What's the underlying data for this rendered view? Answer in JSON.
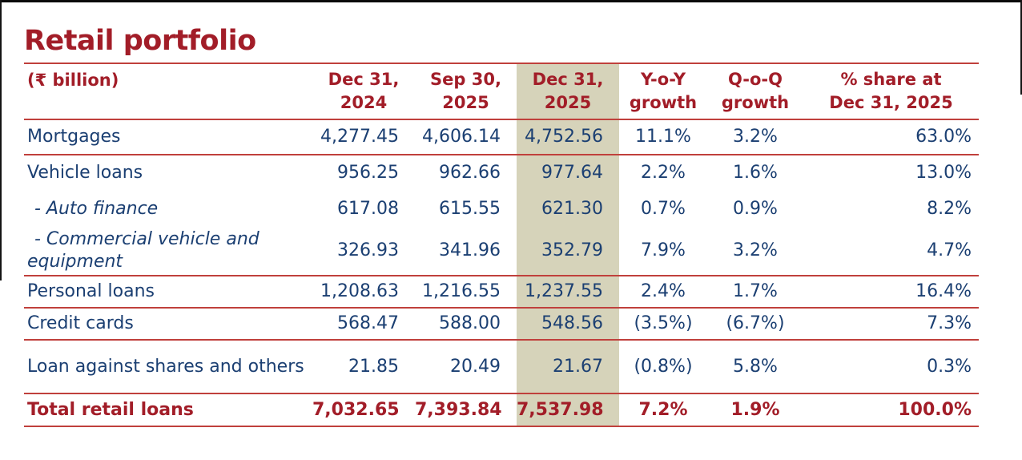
{
  "page": {
    "title": "Retail portfolio"
  },
  "colors": {
    "brand_red": "#A21D28",
    "body_navy": "#1B3F72",
    "rule_red": "#C0403C",
    "highlight_beige": "#D6D3BA"
  },
  "table": {
    "columns": [
      {
        "id": "label",
        "lines": [
          "(₹ billion)"
        ]
      },
      {
        "id": "dec2024",
        "lines": [
          "Dec 31,",
          "2024"
        ]
      },
      {
        "id": "sep2025",
        "lines": [
          "Sep 30,",
          "2025"
        ]
      },
      {
        "id": "dec2025",
        "lines": [
          "Dec 31,",
          "2025"
        ],
        "highlight": true
      },
      {
        "id": "yoy",
        "lines": [
          "Y-o-Y",
          "growth"
        ]
      },
      {
        "id": "qoq",
        "lines": [
          "Q-o-Q",
          "growth"
        ]
      },
      {
        "id": "share",
        "lines": [
          "% share at",
          "Dec 31, 2025"
        ]
      }
    ],
    "rows": [
      {
        "label": "Mortgages",
        "dec2024": "4,277.45",
        "sep2025": "4,606.14",
        "dec2025": "4,752.56",
        "yoy": "11.1%",
        "qoq": "3.2%",
        "share": "63.0%"
      },
      {
        "label": "Vehicle loans",
        "dec2024": "956.25",
        "sep2025": "962.66",
        "dec2025": "977.64",
        "yoy": "2.2%",
        "qoq": "1.6%",
        "share": "13.0%"
      },
      {
        "label": "- Auto finance",
        "dec2024": "617.08",
        "sep2025": "615.55",
        "dec2025": "621.30",
        "yoy": "0.7%",
        "qoq": "0.9%",
        "share": "8.2%"
      },
      {
        "label": "- Commercial vehicle and equipment",
        "dec2024": "326.93",
        "sep2025": "341.96",
        "dec2025": "352.79",
        "yoy": "7.9%",
        "qoq": "3.2%",
        "share": "4.7%"
      },
      {
        "label": "Personal loans",
        "dec2024": "1,208.63",
        "sep2025": "1,216.55",
        "dec2025": "1,237.55",
        "yoy": "2.4%",
        "qoq": "1.7%",
        "share": "16.4%"
      },
      {
        "label": "Credit cards",
        "dec2024": "568.47",
        "sep2025": "588.00",
        "dec2025": "548.56",
        "yoy": "(3.5%)",
        "qoq": "(6.7%)",
        "share": "7.3%"
      },
      {
        "label": "Loan against shares and others",
        "dec2024": "21.85",
        "sep2025": "20.49",
        "dec2025": "21.67",
        "yoy": "(0.8%)",
        "qoq": "5.8%",
        "share": "0.3%"
      },
      {
        "label": "Total retail loans",
        "dec2024": "7,032.65",
        "sep2025": "7,393.84",
        "dec2025": "7,537.98",
        "yoy": "7.2%",
        "qoq": "1.9%",
        "share": "100.0%"
      }
    ]
  }
}
